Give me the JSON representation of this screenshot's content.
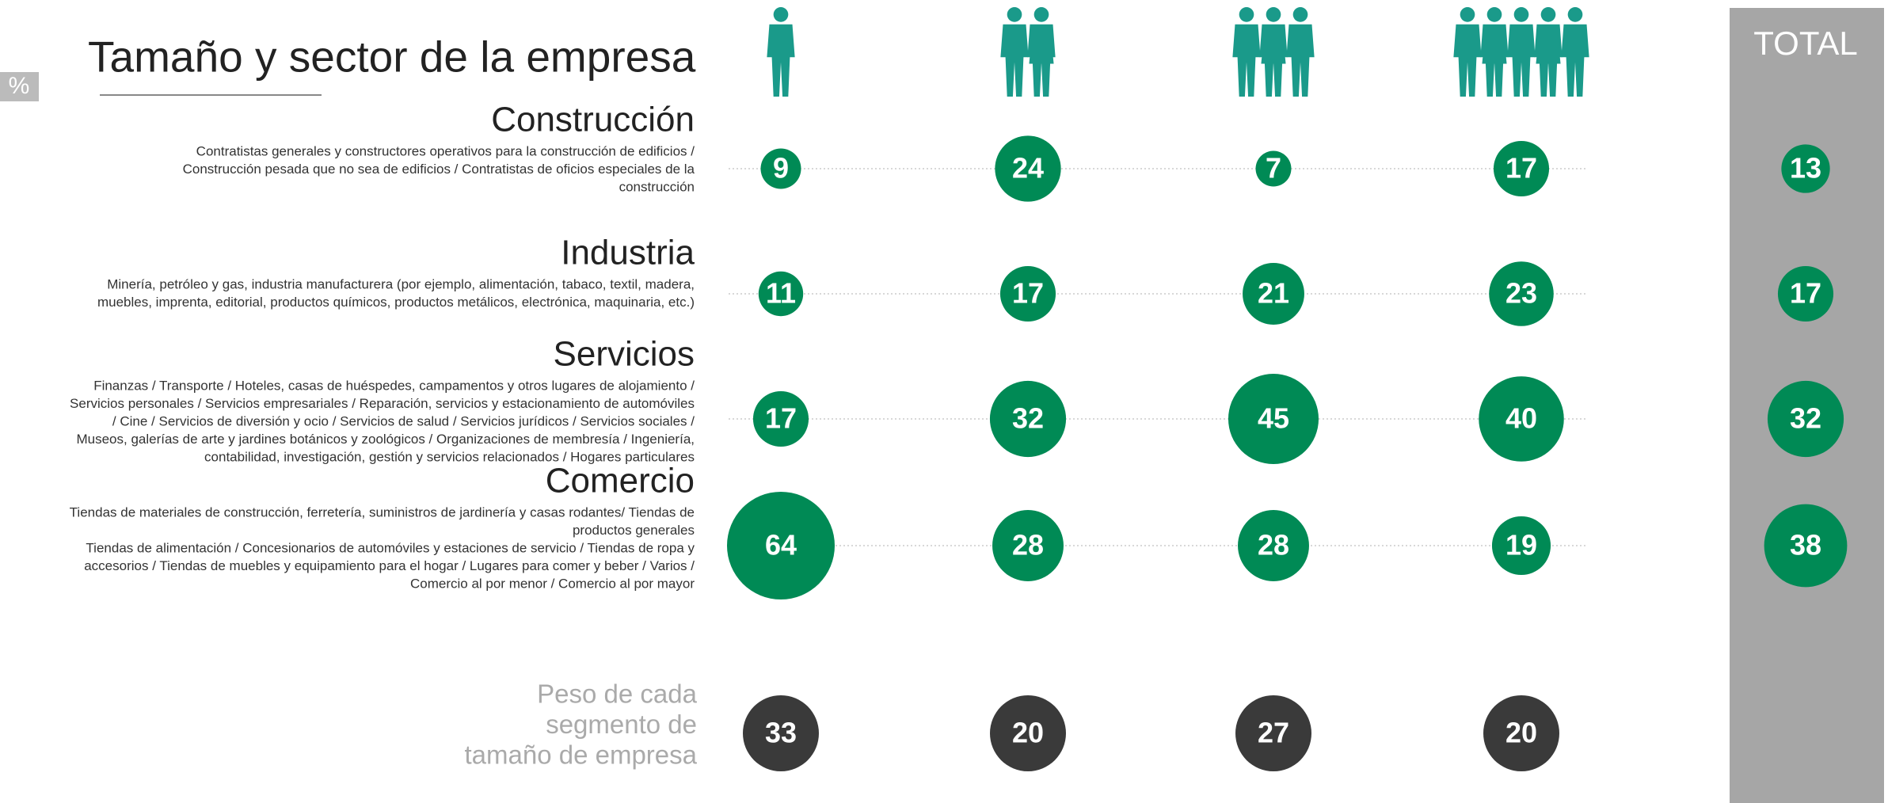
{
  "chart_data": {
    "type": "bubble",
    "title": "Tamaño y sector de la empresa",
    "unit_label": "%",
    "total_label": "TOTAL",
    "bubble_color": "#008a55",
    "weight_color": "#3a3a3a",
    "total_panel_color": "#a6a6a6",
    "icon_color": "#1a9a8a",
    "rows": [
      {
        "name": "Construcción",
        "description": [
          "Contratistas generales y constructores operativos para la construcción de edificios /",
          "Construcción pesada que no sea de edificios / Contratistas de oficios especiales de la",
          "construcción"
        ],
        "values": [
          9,
          24,
          7,
          17
        ],
        "total": 13
      },
      {
        "name": "Industria",
        "description": [
          "Minería, petróleo y gas, industria manufacturera (por ejemplo, alimentación, tabaco, textil, madera,",
          "muebles, imprenta, editorial, productos químicos, productos metálicos, electrónica, maquinaria, etc.)"
        ],
        "values": [
          11,
          17,
          21,
          23
        ],
        "total": 17
      },
      {
        "name": "Servicios",
        "description": [
          "Finanzas / Transporte / Hoteles, casas de huéspedes, campamentos y otros lugares de alojamiento /",
          "Servicios personales / Servicios empresariales / Reparación, servicios y estacionamiento de automóviles",
          "/ Cine / Servicios de diversión y ocio / Servicios de salud / Servicios jurídicos / Servicios sociales /",
          "Museos, galerías de arte y jardines botánicos y zoológicos / Organizaciones de membresía / Ingeniería,",
          "contabilidad, investigación, gestión y servicios relacionados / Hogares particulares"
        ],
        "values": [
          17,
          32,
          45,
          40
        ],
        "total": 32
      },
      {
        "name": "Comercio",
        "description": [
          "Tiendas de materiales de construcción, ferretería, suministros de jardinería y casas rodantes/ Tiendas de",
          "productos generales",
          "Tiendas de alimentación / Concesionarios de automóviles y estaciones de servicio / Tiendas de ropa y",
          "accesorios / Tiendas de muebles y equipamiento para el hogar / Lugares para comer y beber / Varios /",
          "Comercio al por menor / Comercio al por mayor"
        ],
        "values": [
          64,
          28,
          28,
          19
        ],
        "total": 38
      }
    ],
    "weights": {
      "label": [
        "Peso de cada",
        "segmento de",
        "tamaño de empresa"
      ],
      "values": [
        33,
        20,
        27,
        20
      ]
    }
  }
}
